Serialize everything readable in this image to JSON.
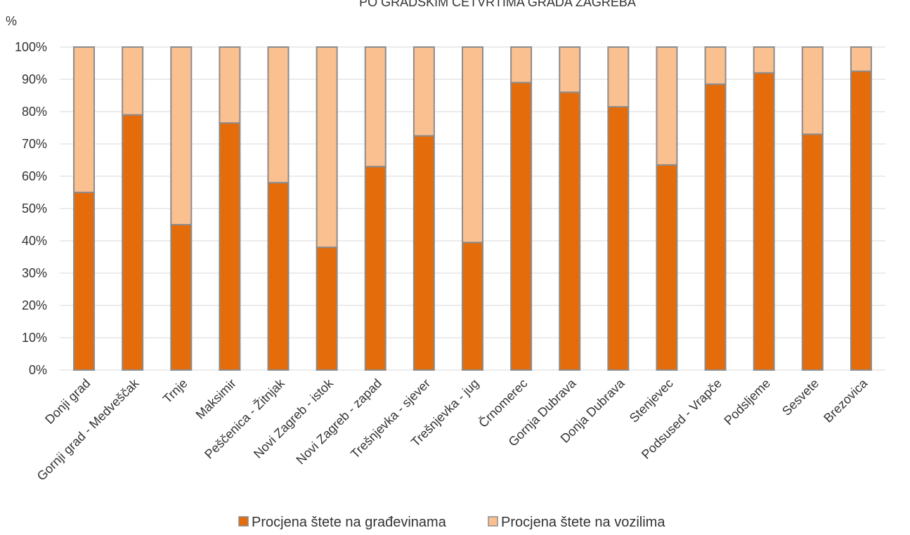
{
  "chart_data": {
    "type": "bar",
    "stacked": true,
    "title": "PO GRADSKIM ČETVRTIMA GRADA ZAGREBA",
    "ylabel": "%",
    "xlabel": "",
    "ylim": [
      0,
      100
    ],
    "yticks": [
      "0%",
      "10%",
      "20%",
      "30%",
      "40%",
      "50%",
      "60%",
      "70%",
      "80%",
      "90%",
      "100%"
    ],
    "grid": true,
    "legend_position": "bottom",
    "categories": [
      "Donji grad",
      "Gornji grad - Medveščak",
      "Trnje",
      "Maksimir",
      "Peščenica - Žitnjak",
      "Novi Zagreb - istok",
      "Novi Zagreb - zapad",
      "Trešnjevka - sjever",
      "Trešnjevka - jug",
      "Črnomerec",
      "Gornja Dubrava",
      "Donja Dubrava",
      "Stenjevec",
      "Podsused - Vrapče",
      "Podsljeme",
      "Sesvete",
      "Brezovica"
    ],
    "series": [
      {
        "name": "Procjena štete na građevinama",
        "color": "#E46C0A",
        "values": [
          55,
          79,
          45,
          76.5,
          58,
          38,
          63,
          72.5,
          39.5,
          89,
          86,
          81.5,
          63.5,
          88.5,
          92,
          73,
          92.5
        ]
      },
      {
        "name": "Procjena štete na vozilima",
        "color": "#FAC090",
        "values": [
          45,
          21,
          55,
          23.5,
          42,
          62,
          37,
          27.5,
          60.5,
          11,
          14,
          18.5,
          36.5,
          11.5,
          8,
          27,
          7.5
        ]
      }
    ]
  }
}
